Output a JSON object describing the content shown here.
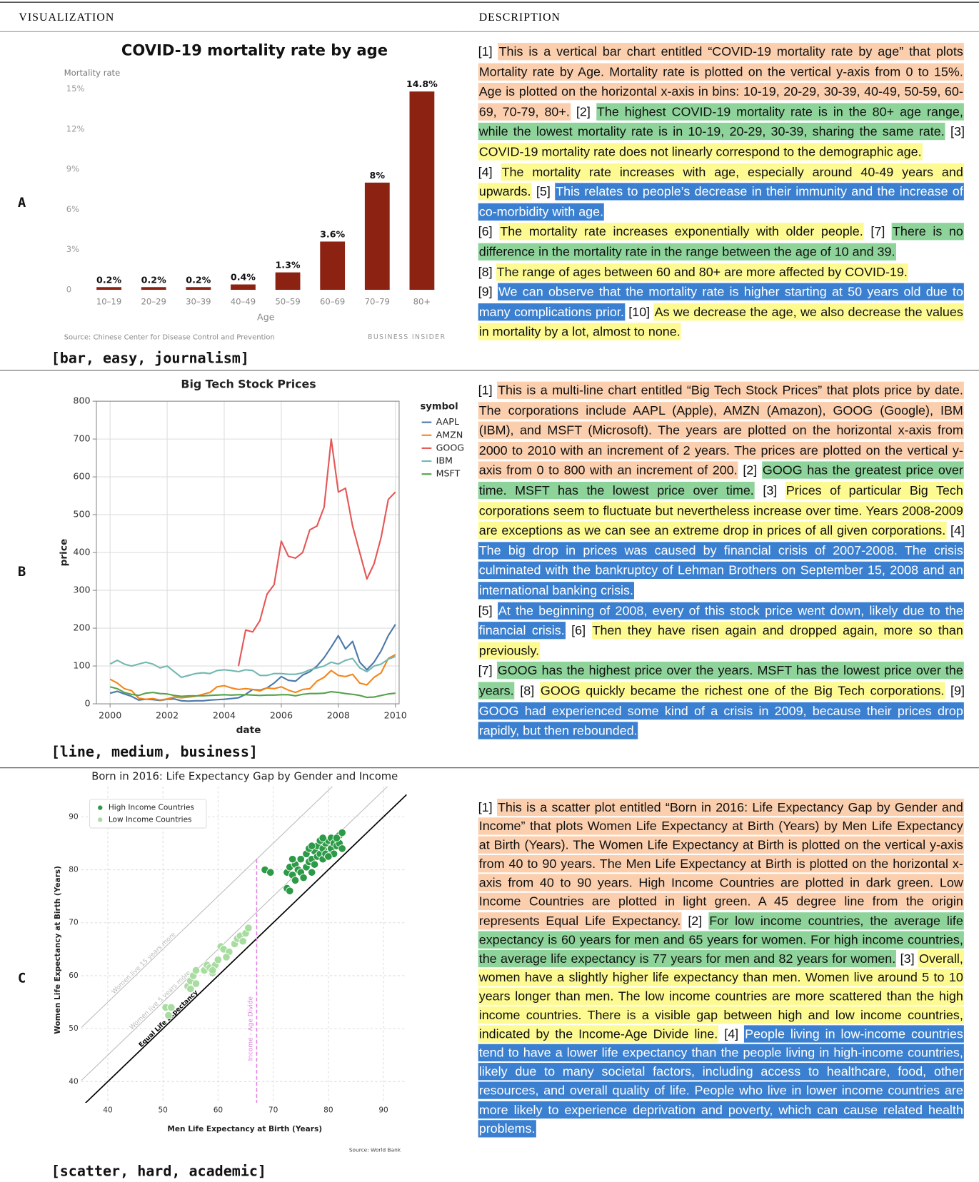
{
  "header": {
    "visualization": "VISUALIZATION",
    "description": "DESCRIPTION"
  },
  "rows": [
    {
      "label": "A",
      "tags": "[bar, easy, journalism]",
      "chart_data": {
        "type": "bar",
        "title": "COVID-19 mortality rate by age",
        "y_label": "Mortality rate",
        "x_label": "Age",
        "categories": [
          "10–19",
          "20–29",
          "30–39",
          "40–49",
          "50–59",
          "60–69",
          "70–79",
          "80+"
        ],
        "values": [
          0.2,
          0.2,
          0.2,
          0.4,
          1.3,
          3.6,
          8,
          14.8
        ],
        "value_labels": [
          "0.2%",
          "0.2%",
          "0.2%",
          "0.4%",
          "1.3%",
          "3.6%",
          "8%",
          "14.8%"
        ],
        "color": "#8c2212",
        "ylim": [
          0,
          15
        ],
        "yticks": [
          0,
          {
            "value": 3,
            "label": "3%"
          },
          {
            "value": 6,
            "label": "6%"
          },
          {
            "value": 9,
            "label": "9%"
          },
          {
            "value": 12,
            "label": "12%"
          },
          {
            "value": 15,
            "label": "15%"
          }
        ],
        "grid": false,
        "source": "Source: Chinese Center for Disease Control and Prevention",
        "brand": "BUSINESS INSIDER"
      },
      "description": [
        [
          {
            "num": "[1]",
            "text": "This is a vertical bar chart entitled “COVID-19 mortality rate by age” that plots Mortality rate by Age. Mortality rate is plotted on the vertical y-axis from 0 to 15%. Age is plotted on the horizontal x-axis in bins: 10-19, 20-29, 30-39, 40-49, 50-59, 60-69, 70-79, 80+.",
            "color": "#fbcfae"
          },
          {
            "num": "[2]",
            "text": "The highest COVID-19 mortality rate is in the 80+ age range, while the lowest mortality rate is in 10-19, 20-29, 30-39, sharing the same rate.",
            "color": "#8ed49a"
          },
          {
            "num": "[3]",
            "text": "COVID-19 mortality rate does not linearly correspond to the demographic age.",
            "color": "#fdfa92"
          }
        ],
        [
          {
            "num": "[4]",
            "text": "The mortality rate increases with age, especially around 40-49 years and upwards.",
            "color": "#fdfa92"
          },
          {
            "num": "[5]",
            "text": "This relates to people’s decrease in their immunity and the increase of co-morbidity with age.",
            "color": "#3b80d0"
          }
        ],
        [
          {
            "num": "[6]",
            "text": "The mortality rate increases exponentially with older people.",
            "color": "#fdfa92"
          },
          {
            "num": "[7]",
            "text": "There is no difference in the mortality rate in the range between the age of 10 and 39.",
            "color": "#8ed49a"
          }
        ],
        [
          {
            "num": "[8]",
            "text": "The range of ages between 60 and 80+ are more affected by COVID-19.",
            "color": "#fdfa92"
          }
        ],
        [
          {
            "num": "[9]",
            "text": "We can observe that the mortality rate is higher starting at 50 years old due to many complications prior.",
            "color": "#3b80d0"
          },
          {
            "num": "[10]",
            "text": "As we decrease the age, we also decrease the values in mortality by a lot, almost to none.",
            "color": "#fdfa92"
          }
        ]
      ]
    },
    {
      "label": "B",
      "tags": "[line, medium, business]",
      "chart_data": {
        "type": "line",
        "title": "Big Tech Stock Prices",
        "x_label": "date",
        "y_label": "price",
        "legend_title": "symbol",
        "x": [
          2000,
          2000.25,
          2000.5,
          2000.75,
          2001,
          2001.25,
          2001.5,
          2001.75,
          2002,
          2002.25,
          2002.5,
          2002.75,
          2003,
          2003.25,
          2003.5,
          2003.75,
          2004,
          2004.25,
          2004.5,
          2004.75,
          2005,
          2005.25,
          2005.5,
          2005.75,
          2006,
          2006.25,
          2006.5,
          2006.75,
          2007,
          2007.25,
          2007.5,
          2007.75,
          2008,
          2008.25,
          2008.5,
          2008.75,
          2009,
          2009.25,
          2009.5,
          2009.75,
          2010
        ],
        "series": [
          {
            "name": "AAPL",
            "color": "#4c78a8",
            "values": [
              28,
              33,
              26,
              20,
              10,
              12,
              11,
              9,
              12,
              13,
              8,
              7,
              8,
              8,
              10,
              11,
              12,
              14,
              16,
              25,
              38,
              36,
              42,
              55,
              72,
              62,
              60,
              76,
              85,
              100,
              122,
              150,
              180,
              145,
              165,
              110,
              90,
              110,
              140,
              180,
              210
            ]
          },
          {
            "name": "AMZN",
            "color": "#f58518",
            "values": [
              65,
              55,
              40,
              35,
              15,
              12,
              14,
              10,
              13,
              18,
              16,
              18,
              20,
              25,
              30,
              45,
              48,
              42,
              38,
              40,
              38,
              34,
              42,
              40,
              45,
              36,
              30,
              38,
              40,
              60,
              70,
              88,
              75,
              72,
              78,
              55,
              50,
              70,
              82,
              120,
              130
            ]
          },
          {
            "name": "GOOG",
            "color": "#e45756",
            "values": [
              null,
              null,
              null,
              null,
              null,
              null,
              null,
              null,
              null,
              null,
              null,
              null,
              null,
              null,
              null,
              null,
              null,
              null,
              100,
              195,
              190,
              220,
              290,
              315,
              430,
              390,
              385,
              400,
              460,
              470,
              520,
              700,
              560,
              570,
              470,
              400,
              330,
              370,
              440,
              540,
              560
            ]
          },
          {
            "name": "IBM",
            "color": "#72b7b2",
            "values": [
              105,
              115,
              105,
              100,
              105,
              110,
              105,
              95,
              100,
              85,
              70,
              75,
              80,
              82,
              80,
              88,
              90,
              88,
              85,
              90,
              88,
              75,
              75,
              80,
              80,
              78,
              78,
              82,
              90,
              95,
              100,
              110,
              105,
              115,
              120,
              95,
              85,
              100,
              105,
              118,
              125
            ]
          },
          {
            "name": "MSFT",
            "color": "#54a24b",
            "values": [
              45,
              40,
              30,
              25,
              22,
              28,
              30,
              27,
              26,
              22,
              20,
              21,
              21,
              21,
              22,
              23,
              24,
              23,
              24,
              24,
              23,
              22,
              23,
              23,
              24,
              24,
              21,
              25,
              27,
              27,
              28,
              32,
              30,
              27,
              25,
              22,
              17,
              18,
              22,
              26,
              28
            ]
          }
        ],
        "xlim": [
          1999.52,
          2010.13
        ],
        "xticks": [
          2000,
          2002,
          2004,
          2006,
          2008,
          2010
        ],
        "ylim": [
          0,
          800
        ],
        "yticks": [
          0,
          100,
          200,
          300,
          400,
          500,
          600,
          700,
          800
        ],
        "grid": true,
        "legend": "right"
      },
      "description": [
        [
          {
            "num": "[1]",
            "text": "This is a multi-line chart entitled “Big Tech Stock Prices” that plots price by date. The corporations include AAPL (Apple), AMZN (Amazon), GOOG (Google), IBM (IBM), and MSFT (Microsoft). The years are plotted on the horizontal x-axis from 2000 to 2010 with an increment of 2 years. The prices are plotted on the vertical y-axis from 0 to 800 with an increment of 200.",
            "color": "#fbcfae"
          },
          {
            "num": "[2]",
            "text": "GOOG has the greatest price over time. MSFT has the lowest price over time.",
            "color": "#8ed49a"
          },
          {
            "num": "[3]",
            "text": "Prices of particular Big Tech corporations seem to fluctuate but nevertheless increase over time. Years 2008-2009 are exceptions as we can see an extreme drop in prices of all given corporations.",
            "color": "#fdfa92"
          },
          {
            "num": "[4]",
            "text": "The big drop in prices was caused by financial crisis of 2007-2008. The crisis culminated with the bankruptcy of Lehman Brothers on September 15, 2008 and an international banking crisis.",
            "color": "#3b80d0"
          }
        ],
        [
          {
            "num": "[5]",
            "text": "At the beginning of 2008, every of this stock price went down, likely due to the financial crisis.",
            "color": "#3b80d0"
          },
          {
            "num": "[6]",
            "text": "Then they have risen again and dropped again, more so than previously.",
            "color": "#fdfa92"
          }
        ],
        [
          {
            "num": "[7]",
            "text": "GOOG has the highest price over the years. MSFT has the lowest price over the years.",
            "color": "#8ed49a"
          },
          {
            "num": "[8]",
            "text": "GOOG quickly became the richest one of the Big Tech corporations.",
            "color": "#fdfa92"
          },
          {
            "num": "[9]",
            "text": "GOOG had experienced some kind of a crisis in 2009, because their prices drop rapidly, but then rebounded.",
            "color": "#3b80d0"
          }
        ]
      ]
    },
    {
      "label": "C",
      "tags": "[scatter, hard, academic]",
      "chart_data": {
        "type": "scatter",
        "title": "Born in 2016: Life Expectancy Gap by Gender and Income",
        "x_label": "Men Life Expectancy at Birth (Years)",
        "y_label": "Women Life Expectancy at Birth (Years)",
        "source": "Source: World Bank",
        "series": [
          {
            "name": "High Income Countries",
            "color": "#2d9a47",
            "x": [
              68.5,
              69.5,
              72.5,
              73,
              72.5,
              73,
              73.5,
              74,
              74.5,
              75,
              75,
              75.5,
              76,
              76,
              76.5,
              77,
              77,
              77.5,
              78,
              78,
              78.5,
              79,
              79,
              79.5,
              80,
              80,
              80.5,
              80.5,
              81,
              81,
              81.5,
              82,
              82,
              82.5,
              82.5,
              79.5,
              78.5,
              77.5,
              76.5,
              74,
              73.5,
              80,
              81.5,
              79,
              77
            ],
            "values": [
              80,
              79.5,
              76.5,
              76,
              79.5,
              80.5,
              79,
              81,
              80,
              82,
              79.5,
              78.5,
              80.5,
              83,
              81.5,
              82,
              79.5,
              83.5,
              82.5,
              84.5,
              83,
              84,
              82,
              85,
              83.5,
              85.5,
              84,
              86,
              85,
              83,
              84.5,
              86.5,
              85,
              84,
              87,
              83,
              85.5,
              81,
              84,
              78,
              82,
              82.5,
              86,
              86,
              84.5
            ]
          },
          {
            "name": "Low Income Countries",
            "color": "#a8dca0",
            "x": [
              50.5,
              51.5,
              51,
              54.5,
              55,
              55.5,
              56,
              55,
              57.5,
              58,
              58.5,
              59.5,
              59,
              60,
              60.5,
              61,
              62,
              61.5,
              63,
              63.5,
              64,
              65,
              65.5,
              64.5,
              56,
              59
            ],
            "values": [
              54,
              54,
              52.5,
              58,
              59,
              60,
              58.5,
              57.5,
              61,
              62,
              61.5,
              62,
              60.5,
              63,
              65.5,
              65,
              64.5,
              63.5,
              66,
              67,
              67.5,
              68,
              69,
              66.5,
              61,
              61
            ]
          }
        ],
        "reference_lines": [
          {
            "label": "Equal Life Expectancy",
            "offset": 0,
            "color": "#000000"
          },
          {
            "label": "Women live 5 years more",
            "offset": 5,
            "color": "#bbbbbb"
          },
          {
            "label": "Women live 15 years more",
            "offset": 15,
            "color": "#bbbbbb"
          }
        ],
        "divide": {
          "label": "Income - Age Divide",
          "x": 67,
          "top": 82,
          "color": "#e07ee0"
        },
        "xlim": [
          35.2,
          94.2
        ],
        "xticks": [
          40,
          50,
          60,
          70,
          80,
          90
        ],
        "ylim": [
          36,
          95.7
        ],
        "yticks": [
          40,
          50,
          60,
          70,
          80,
          90
        ],
        "grid": true,
        "legend": "upper left"
      },
      "description": [
        [
          {
            "num": "[1]",
            "text": "This is a scatter plot entitled “Born in 2016: Life Expectancy Gap by Gender and Income” that plots Women Life Expectancy at Birth (Years) by Men Life Expectancy at Birth (Years). The Women Life Expectancy at Birth is plotted on the vertical y-axis from 40 to 90 years. The Men Life Expectancy at Birth is plotted on the horizontal x-axis from 40 to 90 years. High Income Countries are plotted in dark green. Low Income Countries are plotted in light green. A 45 degree line from the origin represents Equal Life Expectancy.",
            "color": "#fbcfae"
          },
          {
            "num": "[2]",
            "text": "For low income countries, the average life expectancy is 60 years for men and 65 years for women. For high income countries, the average life expectancy is 77 years for men and 82 years for women.",
            "color": "#8ed49a"
          },
          {
            "num": "[3]",
            "text": "Overall, women have a slightly higher life expectancy than men. Women live around 5 to 10 years longer than men. The low income countries are more scattered than the high income countries. There is a visible gap between high and low income countries, indicated by the Income-Age Divide line.",
            "color": "#fdfa92"
          },
          {
            "num": "[4]",
            "text": "People living in low-income countries tend to have a lower life expectancy than the people living in high-income countries, likely due to many societal factors, including access to healthcare, food, other resources, and overall quality of life. People who live in lower income countries are more likely to experience deprivation and poverty, which can cause related health problems.",
            "color": "#3b80d0"
          }
        ]
      ]
    }
  ]
}
